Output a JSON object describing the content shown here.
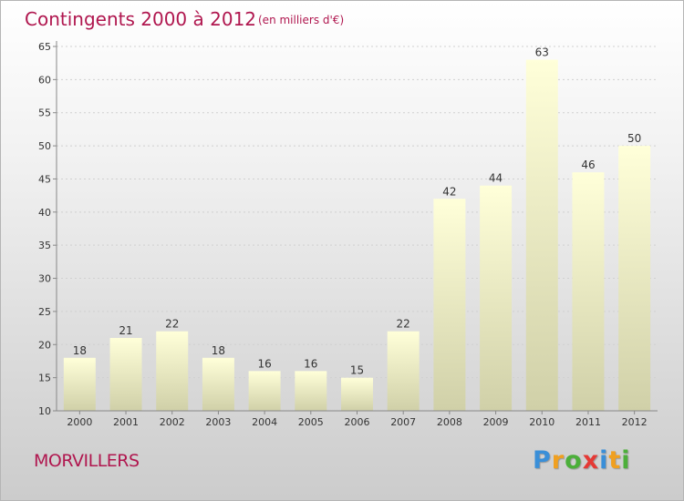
{
  "chart_data": {
    "type": "bar",
    "title": "Contingents 2000 à 2012",
    "subtitle": "(en milliers d'€)",
    "categories": [
      "2000",
      "2001",
      "2002",
      "2003",
      "2004",
      "2005",
      "2006",
      "2007",
      "2008",
      "2009",
      "2010",
      "2011",
      "2012"
    ],
    "values": [
      18,
      21,
      22,
      18,
      16,
      16,
      15,
      22,
      42,
      44,
      63,
      46,
      50
    ],
    "data_labels": [
      "18",
      "21",
      "22",
      "18",
      "16",
      "16",
      "15",
      "22",
      "42",
      "44",
      "63",
      "46",
      "50"
    ],
    "xlabel": "",
    "ylabel": "",
    "ylim": [
      10,
      65
    ],
    "yticks": [
      10,
      15,
      20,
      25,
      30,
      35,
      40,
      45,
      50,
      55,
      60,
      65
    ],
    "ytick_labels": [
      "10",
      "15",
      "20",
      "25",
      "30",
      "35",
      "40",
      "45",
      "50",
      "55",
      "60",
      "65"
    ],
    "grid": true,
    "legend": "none",
    "bar_color_top": "#ffffd9",
    "bar_color_bottom": "#d0d0a8"
  },
  "location": "MORVILLERS",
  "brand": {
    "letters": [
      "P",
      "r",
      "o",
      "x",
      "i",
      "t",
      "i"
    ],
    "colors": [
      "#3a8fd8",
      "#f0a020",
      "#4caf3a",
      "#e53935",
      "#3a8fd8",
      "#f0a020",
      "#4caf3a"
    ]
  },
  "colors": {
    "title": "#b0174f"
  }
}
